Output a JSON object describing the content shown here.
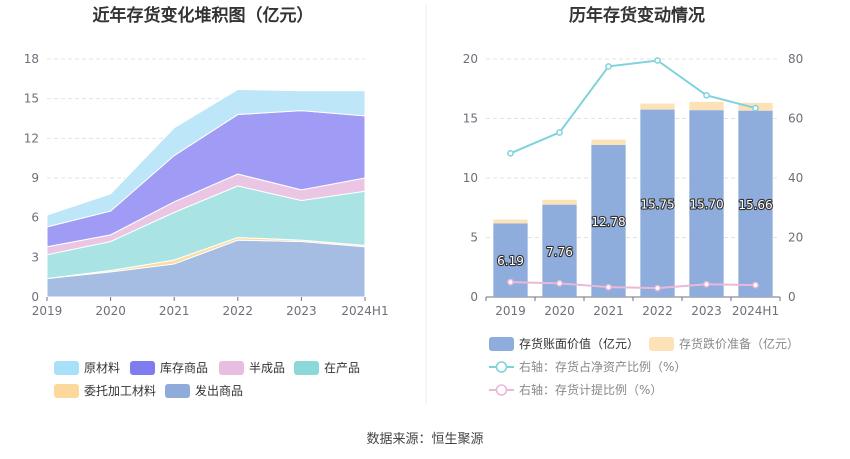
{
  "source_text": "数据来源：恒生聚源",
  "chart_data": [
    {
      "type": "area",
      "stacked": true,
      "title": "近年存货变化堆积图（亿元）",
      "categories": [
        "2019",
        "2020",
        "2021",
        "2022",
        "2023",
        "2024H1"
      ],
      "y_ticks": [
        "0",
        "3",
        "6",
        "9",
        "12",
        "15",
        "18"
      ],
      "ylim": [
        0,
        18
      ],
      "series": [
        {
          "name": "发出商品",
          "color": "#a6bde3",
          "values": [
            1.4,
            1.9,
            2.5,
            4.3,
            4.2,
            3.8
          ]
        },
        {
          "name": "委托加工材料",
          "color": "#fcdca3",
          "values": [
            0.0,
            0.1,
            0.3,
            0.2,
            0.1,
            0.1
          ]
        },
        {
          "name": "在产品",
          "color": "#a9e3e3",
          "values": [
            1.8,
            2.2,
            3.6,
            3.9,
            3.0,
            4.1
          ]
        },
        {
          "name": "半成品",
          "color": "#eac5e4",
          "values": [
            0.6,
            0.5,
            0.8,
            0.9,
            0.8,
            1.0
          ]
        },
        {
          "name": "库存商品",
          "color": "#a09cf6",
          "values": [
            1.5,
            1.8,
            3.5,
            4.5,
            6.0,
            4.7
          ]
        },
        {
          "name": "原材料",
          "color": "#bde6f8",
          "values": [
            0.9,
            1.3,
            2.1,
            1.9,
            1.5,
            1.9
          ]
        }
      ],
      "legend_order": [
        "原材料",
        "库存商品",
        "半成品",
        "在产品",
        "委托加工材料",
        "发出商品"
      ],
      "legend_colors": {
        "原材料": "#a7e1f7",
        "库存商品": "#7f7bf1",
        "半成品": "#e8bde0",
        "在产品": "#8ad8d8",
        "委托加工材料": "#fcd99a",
        "发出商品": "#8fabd9"
      }
    },
    {
      "type": "bar",
      "stacked": true,
      "title": "历年存货变动情况",
      "categories": [
        "2019",
        "2020",
        "2021",
        "2022",
        "2023",
        "2024H1"
      ],
      "y_ticks": [
        "0",
        "5",
        "10",
        "15",
        "20"
      ],
      "y2_ticks": [
        "0",
        "20",
        "40",
        "60",
        "80"
      ],
      "ylim": [
        0,
        20
      ],
      "y2lim": [
        0,
        80
      ],
      "series": [
        {
          "name": "存货账面价值（亿元）",
          "color": "#8eacdc",
          "values": [
            6.19,
            7.76,
            12.78,
            15.75,
            15.7,
            15.66
          ],
          "labels": [
            "6.19",
            "7.76",
            "12.78",
            "15.75",
            "15.70",
            "15.66"
          ]
        },
        {
          "name": "存货跌价准备（亿元）",
          "color": "#fde2b8",
          "values": [
            0.32,
            0.4,
            0.45,
            0.5,
            0.7,
            0.65
          ]
        }
      ],
      "line_series": [
        {
          "name": "右轴：存货占净资产比例（%）",
          "color": "#7fd3dc",
          "values": [
            48.3,
            55.3,
            77.5,
            79.5,
            67.8,
            63.5
          ]
        },
        {
          "name": "右轴：存货计提比例（%）",
          "color": "#eab9d8",
          "values": [
            5.0,
            4.6,
            3.3,
            3.0,
            4.3,
            4.0
          ]
        }
      ]
    }
  ]
}
